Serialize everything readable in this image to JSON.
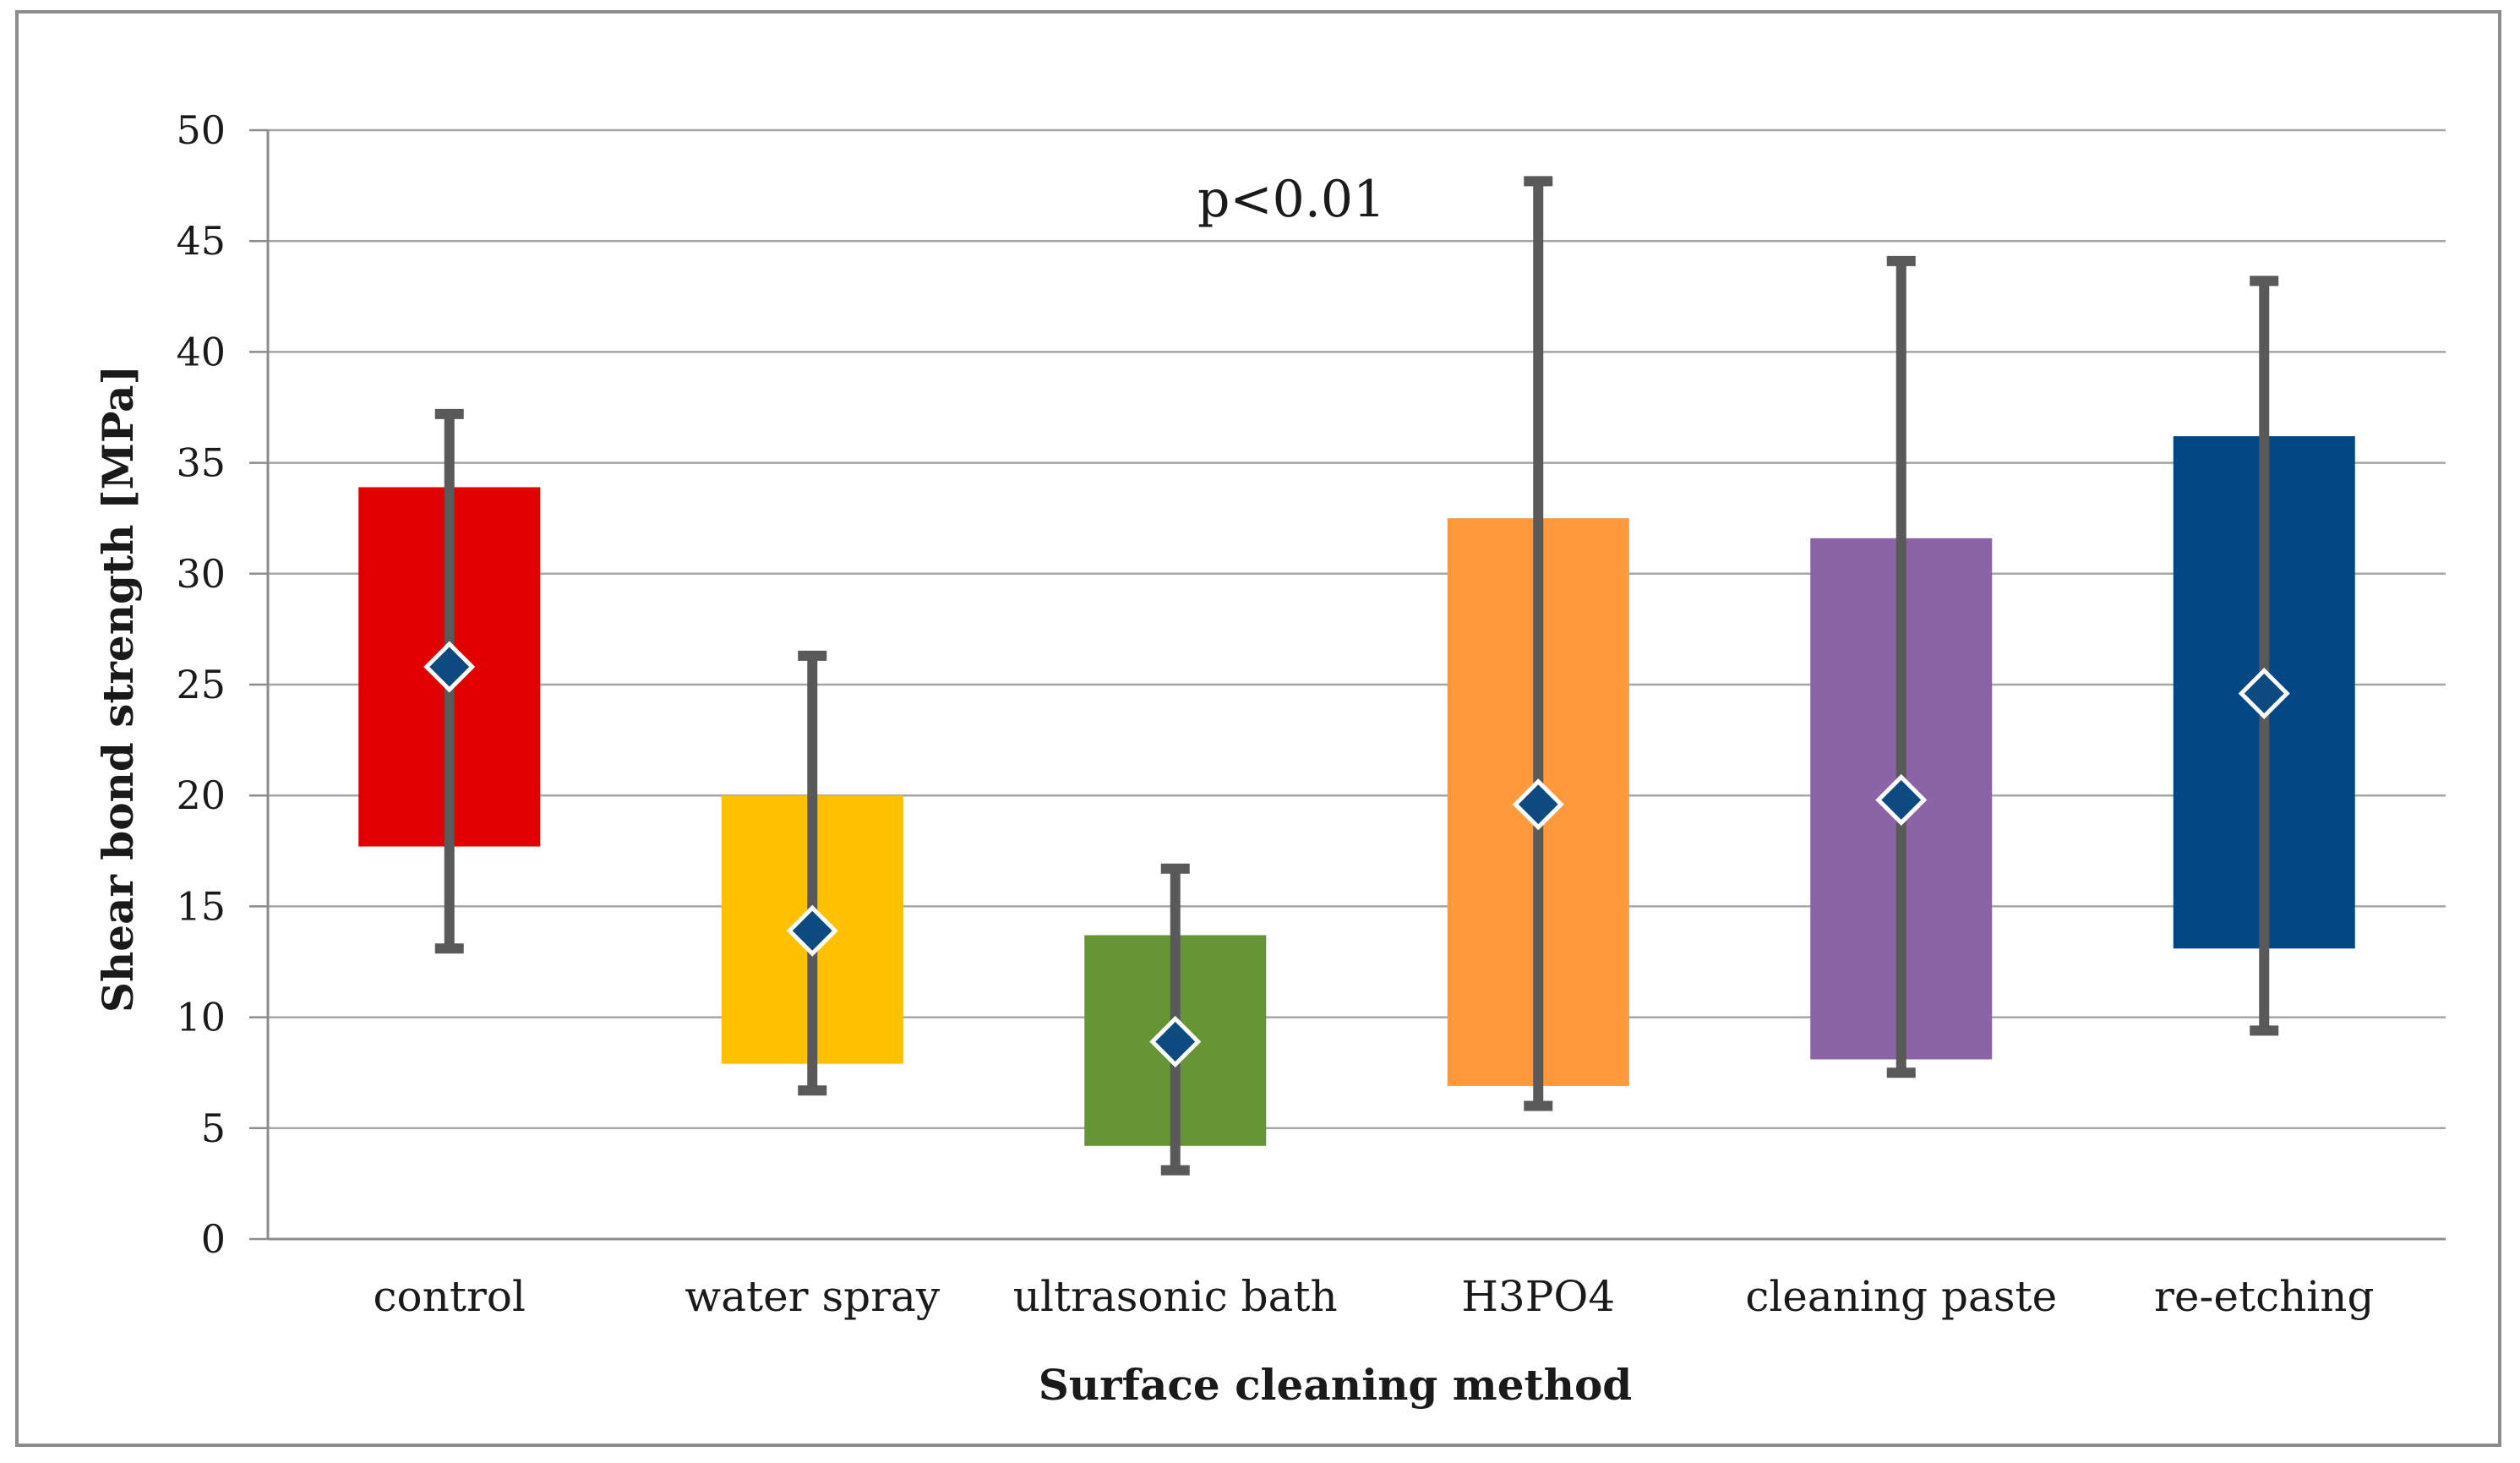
{
  "chart_data": {
    "type": "bar",
    "subtype": "floating-range-with-error-bars",
    "xlabel": "Surface cleaning method",
    "ylabel": "Shear bond strength [MPa]",
    "ylim": [
      0,
      50
    ],
    "yticks": [
      0,
      5,
      10,
      15,
      20,
      25,
      30,
      35,
      40,
      45,
      50
    ],
    "grid": true,
    "annotation": "p<0.01",
    "marker_color": "#0c4a80",
    "errorbar_color": "#595959",
    "categories": [
      "control",
      "water spray",
      "ultrasonic bath",
      "H3PO4",
      "cleaning paste",
      "re-etching"
    ],
    "series": [
      {
        "category": "control",
        "box_low": 17.7,
        "box_high": 33.9,
        "mean": 25.8,
        "whisker_low": 13.1,
        "whisker_high": 37.2,
        "color": "#e10000"
      },
      {
        "category": "water spray",
        "box_low": 7.9,
        "box_high": 20.0,
        "mean": 13.9,
        "whisker_low": 6.7,
        "whisker_high": 26.3,
        "color": "#ffc000"
      },
      {
        "category": "ultrasonic bath",
        "box_low": 4.2,
        "box_high": 13.7,
        "mean": 8.9,
        "whisker_low": 3.1,
        "whisker_high": 16.7,
        "color": "#679434"
      },
      {
        "category": "H3PO4",
        "box_low": 6.9,
        "box_high": 32.5,
        "mean": 19.6,
        "whisker_low": 6.0,
        "whisker_high": 47.7,
        "color": "#ff993c"
      },
      {
        "category": "cleaning paste",
        "box_low": 8.1,
        "box_high": 31.6,
        "mean": 19.8,
        "whisker_low": 7.5,
        "whisker_high": 44.1,
        "color": "#8b64a6"
      },
      {
        "category": "re-etching",
        "box_low": 13.1,
        "box_high": 36.2,
        "mean": 24.6,
        "whisker_low": 9.4,
        "whisker_high": 43.2,
        "color": "#034885"
      }
    ]
  }
}
